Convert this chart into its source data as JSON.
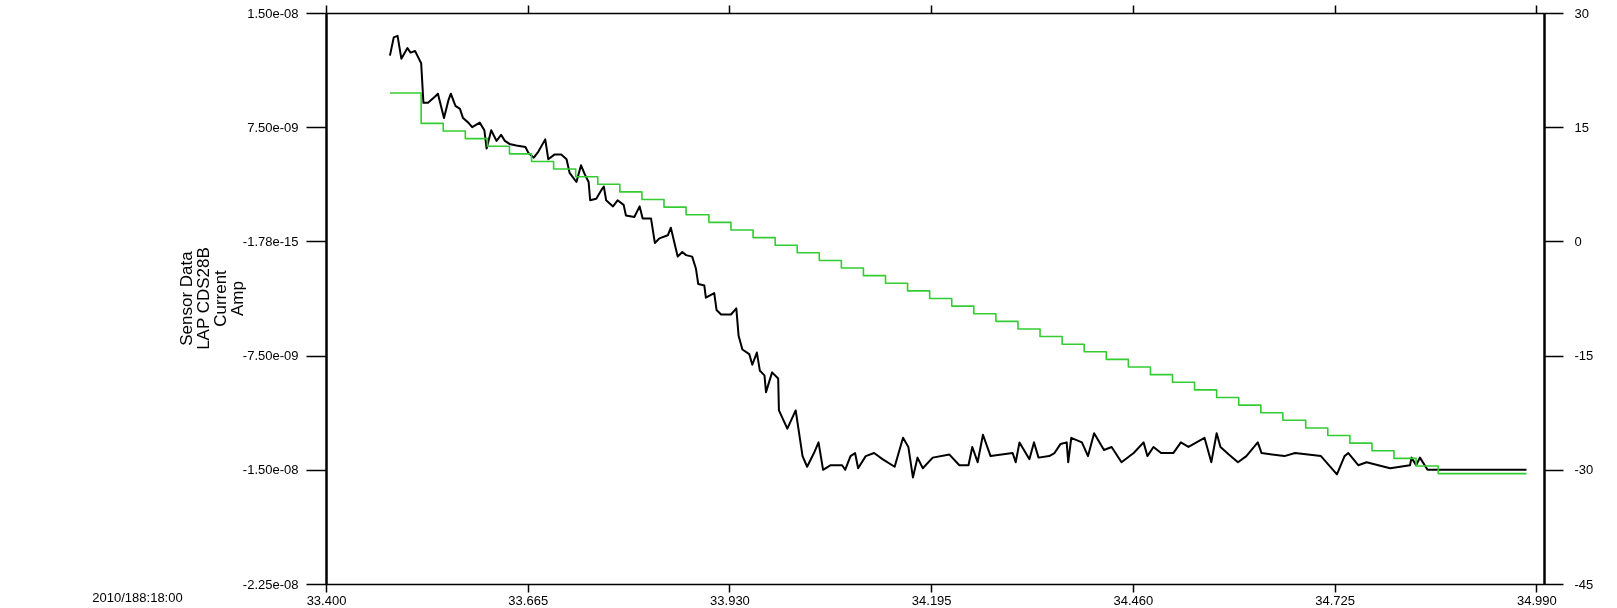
{
  "chart_data": {
    "type": "line",
    "ylabel": "Sensor Data\nLAP CDS28B\nCurrent\nAmp",
    "xlabel": "2010/188:18:00",
    "xlim": [
      33.4,
      35.0
    ],
    "xticks": [
      {
        "value": 33.4,
        "label": "33.400"
      },
      {
        "value": 33.665,
        "label": "33.665"
      },
      {
        "value": 33.93,
        "label": "33.930"
      },
      {
        "value": 34.195,
        "label": "34.195"
      },
      {
        "value": 34.46,
        "label": "34.460"
      },
      {
        "value": 34.725,
        "label": "34.725"
      },
      {
        "value": 34.99,
        "label": "34.990"
      }
    ],
    "ylim": [
      -2.25e-08,
      1.5e-08
    ],
    "yticks": [
      {
        "value": -2.25e-08,
        "label": "-2.25e-08"
      },
      {
        "value": -1.5e-08,
        "label": "-1.50e-08"
      },
      {
        "value": -7.5e-09,
        "label": "-7.50e-09"
      },
      {
        "value": -1.78e-15,
        "label": "-1.78e-15"
      },
      {
        "value": 7.5e-09,
        "label": "7.50e-09"
      },
      {
        "value": 1.5e-08,
        "label": "1.50e-08"
      }
    ],
    "y2lim": [
      -45,
      30
    ],
    "y2ticks": [
      -45,
      -30,
      -15,
      0,
      15,
      30
    ],
    "series": [
      {
        "color": "#000000",
        "x": [
          33.484,
          33.489,
          33.494,
          33.499,
          33.507,
          33.511,
          33.517,
          33.52,
          33.525,
          33.528,
          33.534,
          33.543,
          33.547,
          33.555,
          33.561,
          33.564,
          33.57,
          33.576,
          33.58,
          33.587,
          33.592,
          33.602,
          33.608,
          33.611,
          33.617,
          33.624,
          33.63,
          33.635,
          33.641,
          33.65,
          33.662,
          33.666,
          33.673,
          33.679,
          33.688,
          33.692,
          33.7,
          33.709,
          33.716,
          33.72,
          33.729,
          33.735,
          33.74,
          33.745,
          33.747,
          33.755,
          33.762,
          33.765,
          33.768,
          33.777,
          33.783,
          33.791,
          33.794,
          33.805,
          33.812,
          33.816,
          33.827,
          33.832,
          33.838,
          33.849,
          33.853,
          33.862,
          33.868,
          33.873,
          33.881,
          33.886,
          33.889,
          33.897,
          33.899,
          33.91,
          33.913,
          33.919,
          33.932,
          33.939,
          33.942,
          33.947,
          33.956,
          33.96,
          33.966,
          33.97,
          33.976,
          33.978,
          33.986,
          33.994,
          33.995,
          34.006,
          34.017,
          34.026,
          34.032,
          34.041,
          34.047,
          34.053,
          34.063,
          34.078,
          34.082,
          34.089,
          34.095,
          34.099,
          34.109,
          34.12,
          34.131,
          34.147,
          34.158,
          34.165,
          34.171,
          34.177,
          34.184,
          34.197,
          34.219,
          34.232,
          34.244,
          34.249,
          34.256,
          34.263,
          34.273,
          34.302,
          34.306,
          34.311,
          34.324,
          34.33,
          34.336,
          34.35,
          34.357,
          34.365,
          34.373,
          34.375,
          34.379,
          34.393,
          34.401,
          34.409,
          34.422,
          34.432,
          34.445,
          34.461,
          34.474,
          34.479,
          34.487,
          34.497,
          34.513,
          34.523,
          34.533,
          34.554,
          34.563,
          34.57,
          34.575,
          34.586,
          34.598,
          34.609,
          34.624,
          34.629,
          34.659,
          34.673,
          34.707,
          34.728,
          34.738,
          34.743,
          34.756,
          34.767,
          34.79,
          34.798,
          34.824,
          34.826,
          34.832,
          34.837,
          34.847,
          34.86,
          34.977
        ],
        "values": [
          1.22e-08,
          1.34e-08,
          1.35e-08,
          1.2e-08,
          1.27e-08,
          1.24e-08,
          1.25e-08,
          1.22e-08,
          1.17e-08,
          9.1e-09,
          9.1e-09,
          9.5e-09,
          9.7e-09,
          8.1e-09,
          9.3e-09,
          9.7e-09,
          8.9e-09,
          8.7e-09,
          8.1e-09,
          7.8e-09,
          7.5e-09,
          7.8e-09,
          7.3e-09,
          6.1e-09,
          7.3e-09,
          6.6e-09,
          7e-09,
          6.6e-09,
          6.4e-09,
          6.3e-09,
          6.2e-09,
          5.8e-09,
          5.5e-09,
          5.9e-09,
          6.7e-09,
          5.4e-09,
          5.7e-09,
          5.7e-09,
          5.4e-09,
          4.5e-09,
          3.9e-09,
          5e-09,
          4.4e-09,
          3.9e-09,
          2.7e-09,
          2.8e-09,
          3.4e-09,
          3.6e-09,
          2.7e-09,
          2.3e-09,
          2.7e-09,
          2.4e-09,
          1.7e-09,
          1.6e-09,
          2.3e-09,
          1.5e-09,
          1.5e-09,
          -1e-10,
          2e-10,
          4e-10,
          9e-10,
          -1e-09,
          -7e-10,
          -9e-10,
          -1e-09,
          -1.8e-09,
          -2.8e-09,
          -2.9e-09,
          -3.7e-09,
          -3.4e-09,
          -4.5e-09,
          -4.8e-09,
          -4.8e-09,
          -4.4e-09,
          -6.2e-09,
          -7.1e-09,
          -7.4e-09,
          -8.1e-09,
          -7.3e-09,
          -8.5e-09,
          -8.8e-09,
          -9.9e-09,
          -8.6e-09,
          -9e-09,
          -1.11e-08,
          -1.23e-08,
          -1.11e-08,
          -1.41e-08,
          -1.48e-08,
          -1.39e-08,
          -1.32e-08,
          -1.5e-08,
          -1.47e-08,
          -1.47e-08,
          -1.5e-08,
          -1.41e-08,
          -1.39e-08,
          -1.49e-08,
          -1.41e-08,
          -1.39e-08,
          -1.43e-08,
          -1.48e-08,
          -1.29e-08,
          -1.35e-08,
          -1.55e-08,
          -1.42e-08,
          -1.49e-08,
          -1.42e-08,
          -1.4e-08,
          -1.47e-08,
          -1.47e-08,
          -1.35e-08,
          -1.45e-08,
          -1.27e-08,
          -1.41e-08,
          -1.39e-08,
          -1.45e-08,
          -1.32e-08,
          -1.43e-08,
          -1.32e-08,
          -1.42e-08,
          -1.41e-08,
          -1.39e-08,
          -1.33e-08,
          -1.32e-08,
          -1.45e-08,
          -1.29e-08,
          -1.32e-08,
          -1.41e-08,
          -1.26e-08,
          -1.37e-08,
          -1.35e-08,
          -1.45e-08,
          -1.39e-08,
          -1.32e-08,
          -1.41e-08,
          -1.35e-08,
          -1.39e-08,
          -1.39e-08,
          -1.32e-08,
          -1.35e-08,
          -1.29e-08,
          -1.45e-08,
          -1.26e-08,
          -1.35e-08,
          -1.4e-08,
          -1.45e-08,
          -1.41e-08,
          -1.32e-08,
          -1.39e-08,
          -1.41e-08,
          -1.39e-08,
          -1.41e-08,
          -1.53e-08,
          -1.41e-08,
          -1.39e-08,
          -1.47e-08,
          -1.45e-08,
          -1.48e-08,
          -1.49e-08,
          -1.47e-08,
          -1.42e-08,
          -1.47e-08,
          -1.42e-08,
          -1.5e-08,
          -1.5e-08,
          -1.5e-08
        ]
      },
      {
        "type": "step",
        "axis": "y2",
        "color": "#33cc33",
        "x": [
          33.484,
          33.525,
          33.554,
          33.583,
          33.612,
          33.641,
          33.67,
          33.699,
          33.728,
          33.757,
          33.786,
          33.815,
          33.844,
          33.873,
          33.903,
          33.932,
          33.961,
          33.99,
          34.019,
          34.048,
          34.077,
          34.106,
          34.135,
          34.164,
          34.193,
          34.222,
          34.251,
          34.28,
          34.309,
          34.338,
          34.367,
          34.396,
          34.425,
          34.454,
          34.483,
          34.512,
          34.541,
          34.57,
          34.599,
          34.628,
          34.657,
          34.687,
          34.716,
          34.745,
          34.774,
          34.803,
          34.832,
          34.861,
          34.977
        ],
        "values": [
          19.5,
          15.5,
          14.5,
          13.5,
          12.5,
          11.5,
          10.5,
          9.5,
          8.5,
          7.5,
          6.5,
          5.5,
          4.5,
          3.5,
          2.5,
          1.5,
          0.5,
          -0.5,
          -1.5,
          -2.5,
          -3.5,
          -4.5,
          -5.5,
          -6.5,
          -7.5,
          -8.5,
          -9.5,
          -10.5,
          -11.5,
          -12.5,
          -13.5,
          -14.5,
          -15.5,
          -16.5,
          -17.5,
          -18.5,
          -19.5,
          -20.5,
          -21.5,
          -22.5,
          -23.5,
          -24.5,
          -25.5,
          -26.5,
          -27.5,
          -28.5,
          -29.5,
          -30.5,
          -30.5
        ]
      }
    ]
  }
}
